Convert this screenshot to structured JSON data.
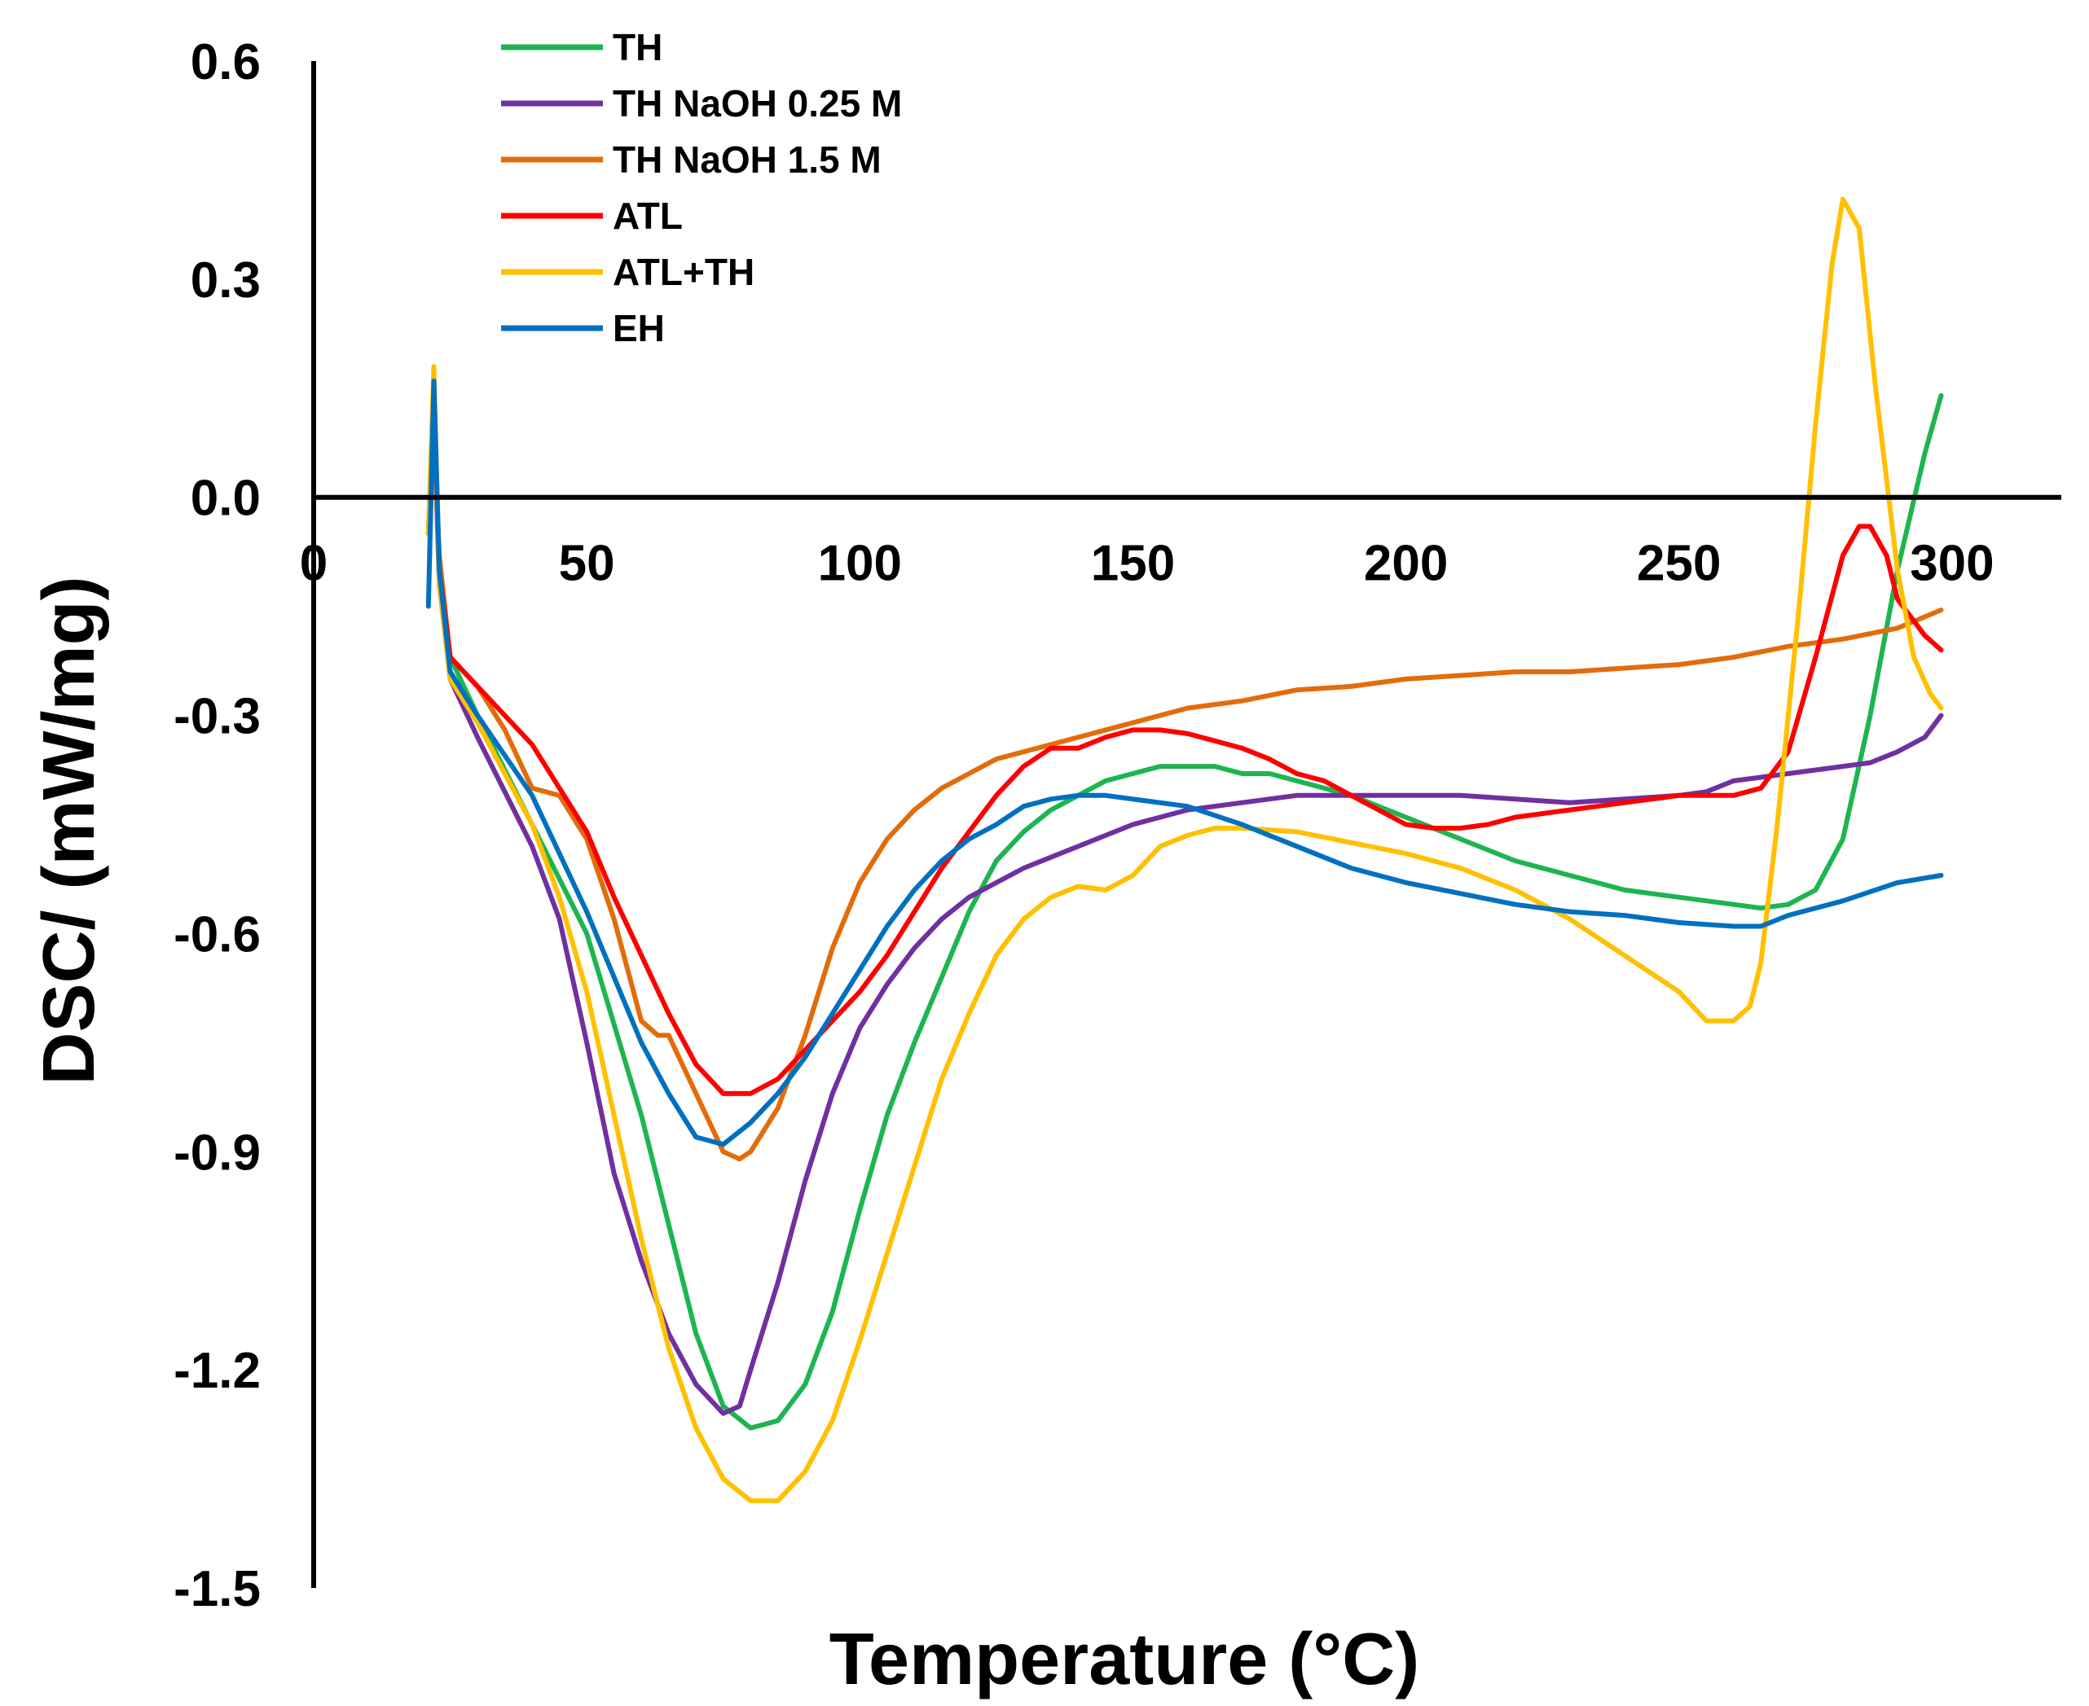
{
  "chart_data": {
    "type": "line",
    "xlabel": "Temperature (°C)",
    "ylabel": "DSC/ (mW/mg)",
    "xlim": [
      0,
      320
    ],
    "ylim": [
      -1.5,
      0.6
    ],
    "xticks": [
      0,
      50,
      100,
      150,
      200,
      250,
      300
    ],
    "xtick_labels": [
      "0",
      "50",
      "100",
      "150",
      "200",
      "250",
      "300"
    ],
    "yticks": [
      0.6,
      0.3,
      0.0,
      -0.3,
      -0.6,
      -0.9,
      -1.2,
      -1.5
    ],
    "ytick_labels": [
      "0.6",
      "0.3",
      "0.0",
      "-0.3",
      "-0.6",
      "-0.9",
      "-1.2",
      "-1.5"
    ],
    "legend_position": "top-left",
    "grid": false,
    "series": [
      {
        "name": "TH",
        "color": "#1db550",
        "points": [
          [
            21,
            -0.05
          ],
          [
            22,
            0.1
          ],
          [
            23,
            -0.1
          ],
          [
            25,
            -0.22
          ],
          [
            30,
            -0.3
          ],
          [
            40,
            -0.45
          ],
          [
            50,
            -0.6
          ],
          [
            60,
            -0.85
          ],
          [
            65,
            -1.0
          ],
          [
            70,
            -1.15
          ],
          [
            75,
            -1.25
          ],
          [
            80,
            -1.28
          ],
          [
            85,
            -1.27
          ],
          [
            90,
            -1.22
          ],
          [
            95,
            -1.12
          ],
          [
            100,
            -0.98
          ],
          [
            105,
            -0.85
          ],
          [
            110,
            -0.75
          ],
          [
            115,
            -0.66
          ],
          [
            120,
            -0.57
          ],
          [
            125,
            -0.5
          ],
          [
            130,
            -0.46
          ],
          [
            135,
            -0.43
          ],
          [
            140,
            -0.41
          ],
          [
            145,
            -0.39
          ],
          [
            150,
            -0.38
          ],
          [
            155,
            -0.37
          ],
          [
            160,
            -0.37
          ],
          [
            165,
            -0.37
          ],
          [
            170,
            -0.38
          ],
          [
            175,
            -0.38
          ],
          [
            180,
            -0.39
          ],
          [
            190,
            -0.41
          ],
          [
            200,
            -0.44
          ],
          [
            210,
            -0.47
          ],
          [
            220,
            -0.5
          ],
          [
            230,
            -0.52
          ],
          [
            240,
            -0.54
          ],
          [
            250,
            -0.55
          ],
          [
            260,
            -0.56
          ],
          [
            265,
            -0.565
          ],
          [
            270,
            -0.56
          ],
          [
            275,
            -0.54
          ],
          [
            280,
            -0.47
          ],
          [
            285,
            -0.3
          ],
          [
            290,
            -0.1
          ],
          [
            295,
            0.06
          ],
          [
            298,
            0.14
          ]
        ]
      },
      {
        "name": "TH NaOH 0.25 M",
        "color": "#7030a0",
        "points": [
          [
            21,
            -0.05
          ],
          [
            22,
            0.12
          ],
          [
            23,
            -0.12
          ],
          [
            25,
            -0.25
          ],
          [
            30,
            -0.33
          ],
          [
            40,
            -0.48
          ],
          [
            45,
            -0.58
          ],
          [
            50,
            -0.75
          ],
          [
            55,
            -0.93
          ],
          [
            60,
            -1.05
          ],
          [
            65,
            -1.15
          ],
          [
            70,
            -1.22
          ],
          [
            75,
            -1.26
          ],
          [
            78,
            -1.25
          ],
          [
            80,
            -1.2
          ],
          [
            85,
            -1.08
          ],
          [
            90,
            -0.94
          ],
          [
            95,
            -0.82
          ],
          [
            100,
            -0.73
          ],
          [
            105,
            -0.67
          ],
          [
            110,
            -0.62
          ],
          [
            115,
            -0.58
          ],
          [
            120,
            -0.55
          ],
          [
            125,
            -0.53
          ],
          [
            130,
            -0.51
          ],
          [
            140,
            -0.48
          ],
          [
            150,
            -0.45
          ],
          [
            160,
            -0.43
          ],
          [
            170,
            -0.42
          ],
          [
            180,
            -0.41
          ],
          [
            190,
            -0.41
          ],
          [
            200,
            -0.41
          ],
          [
            210,
            -0.41
          ],
          [
            220,
            -0.415
          ],
          [
            230,
            -0.42
          ],
          [
            240,
            -0.415
          ],
          [
            250,
            -0.41
          ],
          [
            255,
            -0.405
          ],
          [
            260,
            -0.39
          ],
          [
            265,
            -0.385
          ],
          [
            270,
            -0.38
          ],
          [
            280,
            -0.37
          ],
          [
            285,
            -0.365
          ],
          [
            290,
            -0.35
          ],
          [
            295,
            -0.33
          ],
          [
            298,
            -0.3
          ]
        ]
      },
      {
        "name": "TH NaOH 1.5 M",
        "color": "#e36c0a",
        "points": [
          [
            21,
            -0.05
          ],
          [
            22,
            0.08
          ],
          [
            23,
            -0.08
          ],
          [
            25,
            -0.22
          ],
          [
            30,
            -0.26
          ],
          [
            35,
            -0.32
          ],
          [
            40,
            -0.4
          ],
          [
            45,
            -0.41
          ],
          [
            50,
            -0.47
          ],
          [
            55,
            -0.58
          ],
          [
            60,
            -0.72
          ],
          [
            63,
            -0.74
          ],
          [
            65,
            -0.74
          ],
          [
            70,
            -0.82
          ],
          [
            75,
            -0.9
          ],
          [
            78,
            -0.91
          ],
          [
            80,
            -0.9
          ],
          [
            85,
            -0.84
          ],
          [
            90,
            -0.74
          ],
          [
            95,
            -0.62
          ],
          [
            100,
            -0.53
          ],
          [
            105,
            -0.47
          ],
          [
            110,
            -0.43
          ],
          [
            115,
            -0.4
          ],
          [
            120,
            -0.38
          ],
          [
            125,
            -0.36
          ],
          [
            130,
            -0.35
          ],
          [
            140,
            -0.33
          ],
          [
            150,
            -0.31
          ],
          [
            160,
            -0.29
          ],
          [
            170,
            -0.28
          ],
          [
            180,
            -0.265
          ],
          [
            190,
            -0.26
          ],
          [
            200,
            -0.25
          ],
          [
            210,
            -0.245
          ],
          [
            220,
            -0.24
          ],
          [
            230,
            -0.24
          ],
          [
            240,
            -0.235
          ],
          [
            250,
            -0.23
          ],
          [
            260,
            -0.22
          ],
          [
            270,
            -0.205
          ],
          [
            280,
            -0.195
          ],
          [
            290,
            -0.18
          ],
          [
            298,
            -0.155
          ]
        ]
      },
      {
        "name": "ATL",
        "color": "#ff0000",
        "points": [
          [
            21,
            -0.05
          ],
          [
            22,
            0.14
          ],
          [
            23,
            -0.1
          ],
          [
            25,
            -0.22
          ],
          [
            30,
            -0.26
          ],
          [
            40,
            -0.34
          ],
          [
            50,
            -0.46
          ],
          [
            55,
            -0.55
          ],
          [
            60,
            -0.63
          ],
          [
            65,
            -0.71
          ],
          [
            70,
            -0.78
          ],
          [
            75,
            -0.82
          ],
          [
            80,
            -0.82
          ],
          [
            85,
            -0.8
          ],
          [
            90,
            -0.76
          ],
          [
            95,
            -0.72
          ],
          [
            100,
            -0.68
          ],
          [
            105,
            -0.63
          ],
          [
            110,
            -0.57
          ],
          [
            115,
            -0.51
          ],
          [
            120,
            -0.46
          ],
          [
            125,
            -0.41
          ],
          [
            130,
            -0.37
          ],
          [
            135,
            -0.345
          ],
          [
            140,
            -0.345
          ],
          [
            145,
            -0.33
          ],
          [
            150,
            -0.32
          ],
          [
            155,
            -0.32
          ],
          [
            160,
            -0.325
          ],
          [
            165,
            -0.335
          ],
          [
            170,
            -0.345
          ],
          [
            175,
            -0.36
          ],
          [
            180,
            -0.38
          ],
          [
            185,
            -0.39
          ],
          [
            190,
            -0.41
          ],
          [
            195,
            -0.43
          ],
          [
            200,
            -0.45
          ],
          [
            205,
            -0.455
          ],
          [
            210,
            -0.455
          ],
          [
            215,
            -0.45
          ],
          [
            220,
            -0.44
          ],
          [
            225,
            -0.435
          ],
          [
            230,
            -0.43
          ],
          [
            235,
            -0.425
          ],
          [
            240,
            -0.42
          ],
          [
            245,
            -0.415
          ],
          [
            250,
            -0.41
          ],
          [
            255,
            -0.41
          ],
          [
            260,
            -0.41
          ],
          [
            265,
            -0.4
          ],
          [
            270,
            -0.35
          ],
          [
            275,
            -0.22
          ],
          [
            280,
            -0.08
          ],
          [
            283,
            -0.04
          ],
          [
            285,
            -0.04
          ],
          [
            288,
            -0.08
          ],
          [
            290,
            -0.14
          ],
          [
            295,
            -0.19
          ],
          [
            298,
            -0.21
          ]
        ]
      },
      {
        "name": "ATL+TH",
        "color": "#ffc000",
        "points": [
          [
            21,
            -0.05
          ],
          [
            22,
            0.18
          ],
          [
            23,
            -0.12
          ],
          [
            25,
            -0.25
          ],
          [
            30,
            -0.31
          ],
          [
            40,
            -0.45
          ],
          [
            45,
            -0.55
          ],
          [
            50,
            -0.68
          ],
          [
            55,
            -0.85
          ],
          [
            60,
            -1.02
          ],
          [
            65,
            -1.17
          ],
          [
            70,
            -1.28
          ],
          [
            75,
            -1.35
          ],
          [
            80,
            -1.38
          ],
          [
            85,
            -1.38
          ],
          [
            90,
            -1.34
          ],
          [
            95,
            -1.27
          ],
          [
            100,
            -1.16
          ],
          [
            105,
            -1.04
          ],
          [
            110,
            -0.92
          ],
          [
            115,
            -0.8
          ],
          [
            120,
            -0.71
          ],
          [
            125,
            -0.63
          ],
          [
            130,
            -0.58
          ],
          [
            135,
            -0.55
          ],
          [
            140,
            -0.535
          ],
          [
            145,
            -0.54
          ],
          [
            150,
            -0.52
          ],
          [
            155,
            -0.48
          ],
          [
            160,
            -0.465
          ],
          [
            165,
            -0.455
          ],
          [
            170,
            -0.455
          ],
          [
            180,
            -0.46
          ],
          [
            190,
            -0.475
          ],
          [
            200,
            -0.49
          ],
          [
            210,
            -0.51
          ],
          [
            220,
            -0.54
          ],
          [
            230,
            -0.58
          ],
          [
            240,
            -0.63
          ],
          [
            250,
            -0.68
          ],
          [
            255,
            -0.72
          ],
          [
            260,
            -0.72
          ],
          [
            263,
            -0.7
          ],
          [
            265,
            -0.64
          ],
          [
            268,
            -0.45
          ],
          [
            272,
            -0.15
          ],
          [
            275,
            0.1
          ],
          [
            278,
            0.32
          ],
          [
            280,
            0.41
          ],
          [
            283,
            0.37
          ],
          [
            286,
            0.15
          ],
          [
            290,
            -0.1
          ],
          [
            293,
            -0.22
          ],
          [
            296,
            -0.27
          ],
          [
            298,
            -0.29
          ]
        ]
      },
      {
        "name": "EH",
        "color": "#0070c0",
        "points": [
          [
            21,
            -0.15
          ],
          [
            22,
            0.16
          ],
          [
            23,
            -0.1
          ],
          [
            25,
            -0.24
          ],
          [
            30,
            -0.3
          ],
          [
            40,
            -0.41
          ],
          [
            50,
            -0.57
          ],
          [
            55,
            -0.66
          ],
          [
            60,
            -0.75
          ],
          [
            65,
            -0.82
          ],
          [
            70,
            -0.88
          ],
          [
            75,
            -0.89
          ],
          [
            80,
            -0.86
          ],
          [
            85,
            -0.82
          ],
          [
            90,
            -0.77
          ],
          [
            95,
            -0.71
          ],
          [
            100,
            -0.65
          ],
          [
            105,
            -0.59
          ],
          [
            110,
            -0.54
          ],
          [
            115,
            -0.5
          ],
          [
            120,
            -0.47
          ],
          [
            125,
            -0.45
          ],
          [
            130,
            -0.425
          ],
          [
            135,
            -0.415
          ],
          [
            140,
            -0.41
          ],
          [
            145,
            -0.41
          ],
          [
            150,
            -0.415
          ],
          [
            160,
            -0.425
          ],
          [
            170,
            -0.45
          ],
          [
            180,
            -0.48
          ],
          [
            190,
            -0.51
          ],
          [
            200,
            -0.53
          ],
          [
            210,
            -0.545
          ],
          [
            220,
            -0.56
          ],
          [
            230,
            -0.57
          ],
          [
            240,
            -0.575
          ],
          [
            250,
            -0.585
          ],
          [
            260,
            -0.59
          ],
          [
            265,
            -0.59
          ],
          [
            270,
            -0.575
          ],
          [
            280,
            -0.555
          ],
          [
            290,
            -0.53
          ],
          [
            298,
            -0.52
          ]
        ]
      }
    ]
  }
}
